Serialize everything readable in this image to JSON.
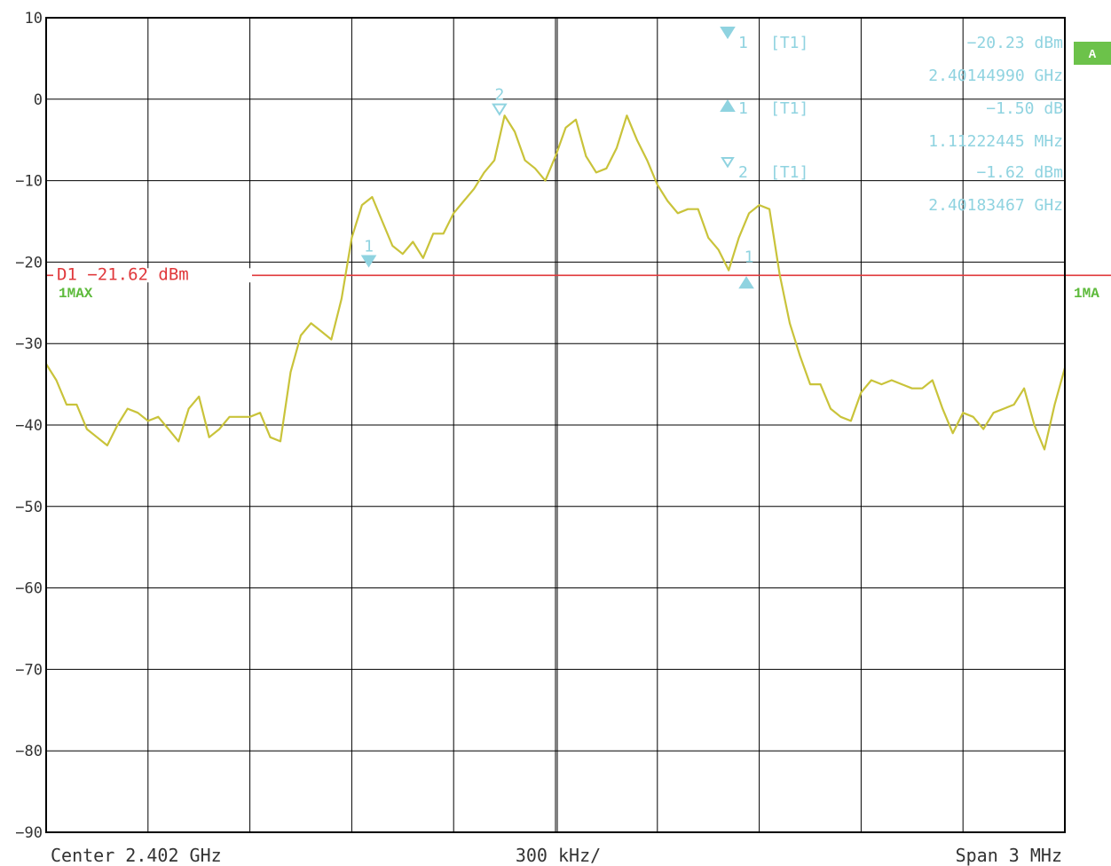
{
  "chart_data": {
    "type": "line",
    "title": "",
    "xlabel": "",
    "ylabel": "",
    "x_unit": "GHz",
    "y_unit": "dBm",
    "ylim": [
      -90,
      10
    ],
    "xlim": [
      2.4005,
      2.4035
    ],
    "grid": true,
    "y_ticks": [
      "10",
      "0",
      "−10",
      "−20",
      "−30",
      "−40",
      "−50",
      "−60",
      "−70",
      "−80",
      "−90"
    ],
    "footer": {
      "center": "Center 2.402 GHz",
      "per_div": "300 kHz/",
      "span": "Span 3 MHz"
    },
    "badge": "A",
    "trace_label_left": "1MAX",
    "trace_label_right": "1MA",
    "threshold": {
      "label": "D1 −21.62 dBm",
      "value": -21.62,
      "color": "#e0383b"
    },
    "trace_color": "#c9c33a",
    "marker_color": "#8fd3e0",
    "markers_on_plot": [
      {
        "label": "1",
        "symbol": "filled-down",
        "x": 2.40145,
        "y": -20.23
      },
      {
        "label": "2",
        "symbol": "open-down",
        "x": 2.401835,
        "y": -1.62
      },
      {
        "label": "1",
        "symbol": "filled-up",
        "x": 2.402562,
        "y": -21.73
      }
    ],
    "marker_table": [
      {
        "symbol": "filled-down",
        "id": "1",
        "trace": "[T1]",
        "value": "−20.23 dBm",
        "freq": "2.40144990 GHz"
      },
      {
        "symbol": "filled-up",
        "id": "1",
        "trace": "[T1]",
        "value": "−1.50 dB",
        "freq": "1.11222445 MHz"
      },
      {
        "symbol": "open-down",
        "id": "2",
        "trace": "[T1]",
        "value": "−1.62 dBm",
        "freq": "2.40183467 GHz"
      }
    ],
    "series": [
      {
        "x": [
          2.4005,
          2.40053,
          2.40056,
          2.40059,
          2.40062,
          2.40065,
          2.40068,
          2.40071,
          2.40074,
          2.40077,
          2.4008,
          2.40083,
          2.40086,
          2.40089,
          2.40092,
          2.40095,
          2.40098,
          2.40101,
          2.40104,
          2.40107,
          2.4011,
          2.40113,
          2.40116,
          2.40119,
          2.40122,
          2.40125,
          2.40128,
          2.40131,
          2.40134,
          2.40137,
          2.4014,
          2.40143,
          2.40146,
          2.40149,
          2.40152,
          2.40155,
          2.40158,
          2.40161,
          2.40164,
          2.40167,
          2.4017,
          2.40173,
          2.40176,
          2.40179,
          2.40182,
          2.40185,
          2.40188,
          2.40191,
          2.40194,
          2.40197,
          2.402,
          2.40203,
          2.40206,
          2.40209,
          2.40212,
          2.40215,
          2.40218,
          2.40221,
          2.40224,
          2.40227,
          2.4023,
          2.40233,
          2.40236,
          2.40239,
          2.40242,
          2.40245,
          2.40248,
          2.40251,
          2.40254,
          2.40257,
          2.4026,
          2.40263,
          2.40266,
          2.40269,
          2.40272,
          2.40275,
          2.40278,
          2.40281,
          2.40284,
          2.40287,
          2.4029,
          2.40293,
          2.40296,
          2.40299,
          2.40302,
          2.40305,
          2.40308,
          2.40311,
          2.40314,
          2.40317,
          2.4032,
          2.40323,
          2.40326,
          2.40329,
          2.40332,
          2.40335,
          2.40338,
          2.40341,
          2.40344,
          2.40347,
          2.4035
        ],
        "y": [
          -32.5,
          -34.5,
          -37.5,
          -37.5,
          -40.5,
          -41.5,
          -42.5,
          -40,
          -38,
          -38.5,
          -39.5,
          -39,
          -40.5,
          -42,
          -38,
          -36.5,
          -41.5,
          -40.5,
          -39,
          -39,
          -39,
          -38.5,
          -41.5,
          -42,
          -33.5,
          -29,
          -27.5,
          -28.5,
          -29.5,
          -24.5,
          -17,
          -13,
          -12,
          -15,
          -18,
          -19,
          -17.5,
          -19.5,
          -16.5,
          -16.5,
          -14,
          -12.5,
          -11,
          -9,
          -7.5,
          -2,
          -4,
          -7.5,
          -8.5,
          -10,
          -7,
          -3.5,
          -2.5,
          -7,
          -9,
          -8.5,
          -6,
          -2,
          -5,
          -7.5,
          -10.5,
          -12.5,
          -14,
          -13.5,
          -13.5,
          -17,
          -18.5,
          -21,
          -17,
          -14,
          -13,
          -13.5,
          -21.5,
          -27.5,
          -31.5,
          -35,
          -35,
          -38,
          -39,
          -39.5,
          -36,
          -34.5,
          -35,
          -34.5,
          -35,
          -35.5,
          -35.5,
          -34.5,
          -38,
          -41,
          -38.5,
          -39,
          -40.5,
          -38.5,
          -38,
          -37.5,
          -35.5,
          -40,
          -43,
          -37.5,
          -33
        ]
      }
    ]
  }
}
